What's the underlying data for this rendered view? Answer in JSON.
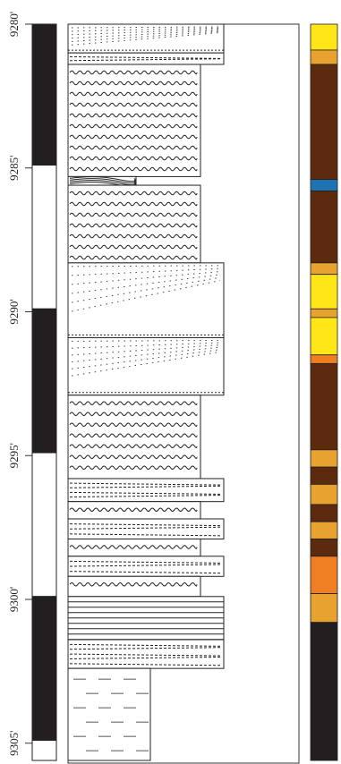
{
  "depth_labels": [
    "9280'",
    "9285'",
    "9290'",
    "9295'",
    "9300'",
    "9305'"
  ],
  "depths": [
    9280,
    9285,
    9290,
    9295,
    9300,
    9305
  ],
  "polarity": [
    {
      "from": 9280,
      "to": 9284.9,
      "state": "normal",
      "color": "#231f20"
    },
    {
      "from": 9284.9,
      "to": 9289.9,
      "state": "reversed",
      "color": "#ffffff"
    },
    {
      "from": 9289.9,
      "to": 9294.9,
      "state": "normal",
      "color": "#231f20"
    },
    {
      "from": 9294.9,
      "to": 9299.9,
      "state": "reversed",
      "color": "#ffffff"
    },
    {
      "from": 9299.9,
      "to": 9304.9,
      "state": "normal",
      "color": "#231f20"
    },
    {
      "from": 9304.9,
      "to": 9305.6,
      "state": "reversed",
      "color": "#ffffff"
    }
  ],
  "lithology": [
    {
      "from": 9280.0,
      "to": 9281.0,
      "type": "cross-bedded-sand",
      "width": "wide"
    },
    {
      "from": 9281.0,
      "to": 9281.4,
      "type": "laminated-sand",
      "width": "wide"
    },
    {
      "from": 9281.4,
      "to": 9285.3,
      "type": "wavy-shale",
      "width": "narrow"
    },
    {
      "from": 9285.3,
      "to": 9285.6,
      "type": "coal-streak",
      "width": "short"
    },
    {
      "from": 9285.6,
      "to": 9288.3,
      "type": "wavy-shale",
      "width": "narrow"
    },
    {
      "from": 9288.3,
      "to": 9290.9,
      "type": "cross-bedded-sand",
      "width": "wide"
    },
    {
      "from": 9290.9,
      "to": 9292.9,
      "type": "cross-bedded-sand",
      "width": "wide"
    },
    {
      "from": 9292.9,
      "to": 9295.8,
      "type": "wavy-shale",
      "width": "narrow"
    },
    {
      "from": 9295.8,
      "to": 9296.6,
      "type": "laminated-sand",
      "width": "wide"
    },
    {
      "from": 9296.6,
      "to": 9297.2,
      "type": "wavy-shale",
      "width": "narrow"
    },
    {
      "from": 9297.2,
      "to": 9297.9,
      "type": "laminated-sand",
      "width": "wide"
    },
    {
      "from": 9297.9,
      "to": 9298.5,
      "type": "wavy-shale",
      "width": "narrow"
    },
    {
      "from": 9298.5,
      "to": 9299.2,
      "type": "laminated-sand",
      "width": "wide"
    },
    {
      "from": 9299.2,
      "to": 9299.9,
      "type": "wavy-shale",
      "width": "narrow"
    },
    {
      "from": 9299.9,
      "to": 9301.4,
      "type": "horizontal-laminae",
      "width": "wide"
    },
    {
      "from": 9301.4,
      "to": 9302.4,
      "type": "laminated-sand",
      "width": "wide"
    },
    {
      "from": 9302.4,
      "to": 9305.6,
      "type": "mudstone",
      "width": "half"
    }
  ],
  "color_log": [
    {
      "from": 9280.0,
      "to": 9280.9,
      "color": "#ffe617"
    },
    {
      "from": 9280.9,
      "to": 9281.4,
      "color": "#e8a230"
    },
    {
      "from": 9281.4,
      "to": 9285.4,
      "color": "#5c2a0c"
    },
    {
      "from": 9285.4,
      "to": 9285.8,
      "color": "#1f73b3"
    },
    {
      "from": 9285.8,
      "to": 9288.3,
      "color": "#5c2a0c"
    },
    {
      "from": 9288.3,
      "to": 9288.7,
      "color": "#e8a230"
    },
    {
      "from": 9288.7,
      "to": 9289.9,
      "color": "#ffe617"
    },
    {
      "from": 9289.9,
      "to": 9290.2,
      "color": "#e8a230"
    },
    {
      "from": 9290.2,
      "to": 9291.5,
      "color": "#ffe617"
    },
    {
      "from": 9291.5,
      "to": 9291.8,
      "color": "#f07f24"
    },
    {
      "from": 9291.8,
      "to": 9294.8,
      "color": "#5c2a0c"
    },
    {
      "from": 9294.8,
      "to": 9295.4,
      "color": "#e8a230"
    },
    {
      "from": 9295.4,
      "to": 9296.0,
      "color": "#5c2a0c"
    },
    {
      "from": 9296.0,
      "to": 9296.7,
      "color": "#e8a230"
    },
    {
      "from": 9296.7,
      "to": 9297.3,
      "color": "#5c2a0c"
    },
    {
      "from": 9297.3,
      "to": 9297.9,
      "color": "#e8a230"
    },
    {
      "from": 9297.9,
      "to": 9298.5,
      "color": "#5c2a0c"
    },
    {
      "from": 9298.5,
      "to": 9299.8,
      "color": "#f07f24"
    },
    {
      "from": 9299.8,
      "to": 9300.8,
      "color": "#e8a230"
    },
    {
      "from": 9300.8,
      "to": 9305.6,
      "color": "#231f20"
    }
  ]
}
